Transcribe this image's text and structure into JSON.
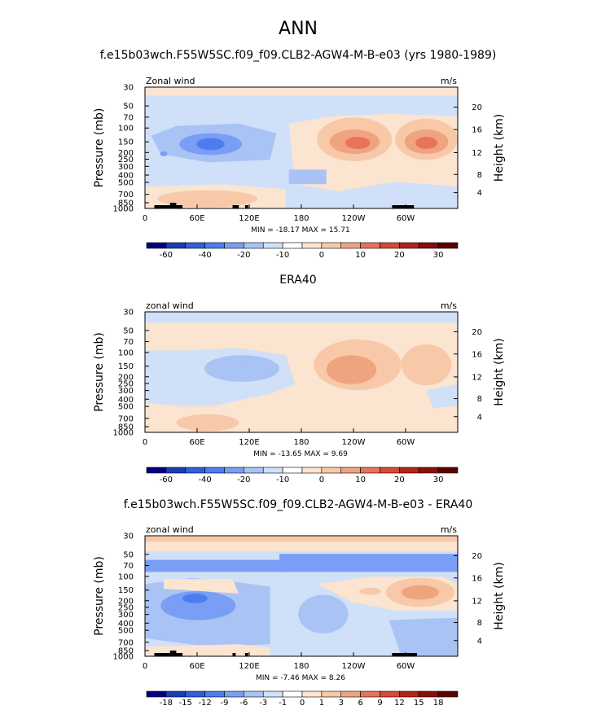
{
  "figure": {
    "title": "ANN"
  },
  "chart_data": [
    {
      "type": "contour",
      "title": "f.e15b03wch.F55W5SC.f09_f09.CLB2-AGW4-M-B-e03 (yrs 1980-1989)",
      "left_label": "Zonal wind",
      "right_label": "m/s",
      "ylabel": "Pressure (mb)",
      "y2label": "Height (km)",
      "x_ticks": [
        "0",
        "60E",
        "120E",
        "180",
        "120W",
        "60W"
      ],
      "y_ticks": [
        "30",
        "50",
        "70",
        "100",
        "150",
        "200",
        "250",
        "300",
        "400",
        "500",
        "700",
        "850",
        "1000"
      ],
      "y2_ticks": [
        "20",
        "16",
        "12",
        "8",
        "4"
      ],
      "stats": {
        "min": "-18.17",
        "max": "15.71"
      },
      "stats_text": "MIN = -18.17   MAX =  15.71",
      "colorbar_labels": [
        "-60",
        "-40",
        "-20",
        "-10",
        "0",
        "10",
        "20",
        "30"
      ]
    },
    {
      "type": "contour",
      "title": "ERA40",
      "left_label": "zonal wind",
      "right_label": "m/s",
      "ylabel": "Pressure (mb)",
      "y2label": "Height (km)",
      "x_ticks": [
        "0",
        "60E",
        "120E",
        "180",
        "120W",
        "60W"
      ],
      "y_ticks": [
        "30",
        "50",
        "70",
        "100",
        "150",
        "200",
        "250",
        "300",
        "400",
        "500",
        "700",
        "850",
        "1000"
      ],
      "y2_ticks": [
        "20",
        "16",
        "12",
        "8",
        "4"
      ],
      "stats": {
        "min": "-13.65",
        "max": "9.69"
      },
      "stats_text": "MIN = -13.65   MAX =   9.69",
      "colorbar_labels": [
        "-60",
        "-40",
        "-20",
        "-10",
        "0",
        "10",
        "20",
        "30"
      ]
    },
    {
      "type": "contour",
      "title": "f.e15b03wch.F55W5SC.f09_f09.CLB2-AGW4-M-B-e03 - ERA40",
      "left_label": "zonal wind",
      "right_label": "m/s",
      "ylabel": "Pressure (mb)",
      "y2label": "Height (km)",
      "x_ticks": [
        "0",
        "60E",
        "120E",
        "180",
        "120W",
        "60W"
      ],
      "y_ticks": [
        "30",
        "50",
        "70",
        "100",
        "150",
        "200",
        "250",
        "300",
        "400",
        "500",
        "700",
        "850",
        "1000"
      ],
      "y2_ticks": [
        "20",
        "16",
        "12",
        "8",
        "4"
      ],
      "stats": {
        "min": "-7.46",
        "max": "8.26"
      },
      "stats_text": "MIN =  -7.46   MAX =   8.26",
      "colorbar_labels": [
        "-18",
        "-15",
        "-12",
        "-9",
        "-6",
        "-3",
        "-1",
        "0",
        "1",
        "3",
        "6",
        "9",
        "12",
        "15",
        "18"
      ]
    }
  ],
  "colors": {
    "scale": [
      "#000080",
      "#1a3db4",
      "#2e5fdc",
      "#4c7cf0",
      "#7a9ef5",
      "#a9c3f5",
      "#cfe0f8",
      "#ffffff",
      "#fbe4d0",
      "#f7c9a8",
      "#f0a37f",
      "#e8735a",
      "#d94735",
      "#b52318",
      "#8a0e0a",
      "#5e0000"
    ],
    "topo": "#000000"
  }
}
